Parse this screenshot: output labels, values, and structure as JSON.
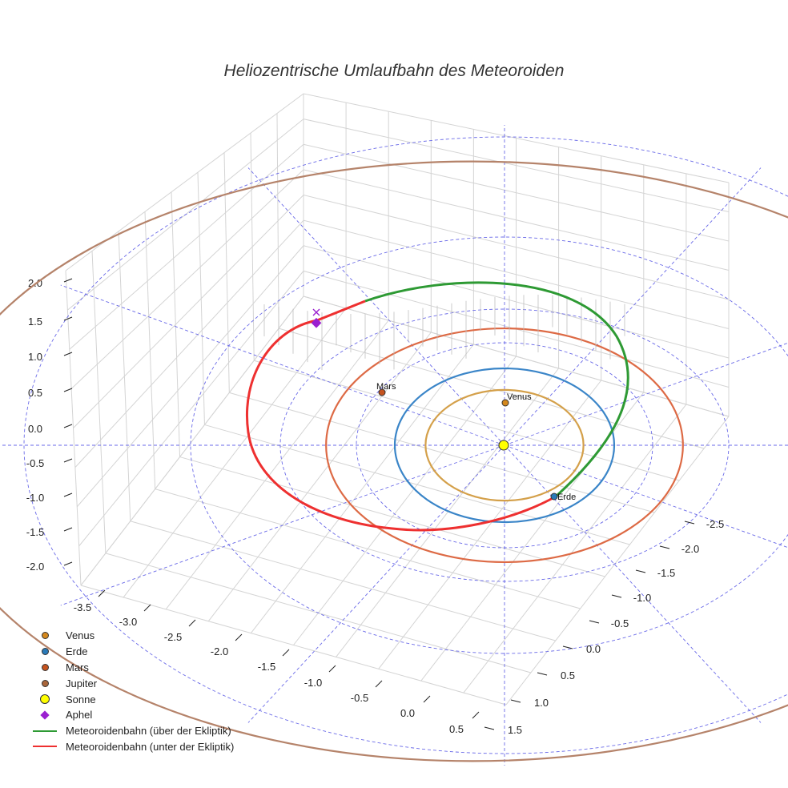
{
  "chart_data": {
    "type": "line",
    "title": "Heliozentrische Umlaufbahn des Meteoroiden",
    "axes": {
      "x_ticks": [
        "-3.5",
        "-3.0",
        "-2.5",
        "-2.0",
        "-1.5",
        "-1.0",
        "-0.5",
        "0.0",
        "0.5"
      ],
      "y_ticks": [
        "-2.5",
        "-2.0",
        "-1.5",
        "-1.0",
        "-0.5",
        "0.0",
        "0.5",
        "1.0",
        "1.5"
      ],
      "z_ticks": [
        "2.0",
        "1.5",
        "1.0",
        "0.5",
        "0.0",
        "-0.5",
        "-1.0",
        "-1.5",
        "-2.0"
      ],
      "zlim": [
        -2.0,
        2.0
      ],
      "grid": true
    },
    "planets": [
      {
        "name": "Venus",
        "orbit_radius": 0.72,
        "color": "#d4a04a",
        "label": "Venus"
      },
      {
        "name": "Erde",
        "orbit_radius": 1.0,
        "color": "#3a85c8",
        "label": "Erde"
      },
      {
        "name": "Mars",
        "orbit_radius": 1.52,
        "color": "#dd6a45",
        "label": "Mars"
      },
      {
        "name": "Jupiter",
        "orbit_radius": 5.2,
        "color": "#b5836a",
        "label": ""
      }
    ],
    "sun": {
      "name": "Sonne",
      "color": "#ffff00"
    },
    "aphel": {
      "name": "Aphel",
      "color": "#9a1fd0"
    },
    "series": [
      {
        "name": "Meteoroidenbahn (über der Ekliptik)",
        "color": "#2e9a34"
      },
      {
        "name": "Meteoroidenbahn (unter der Ekliptik)",
        "color": "#ee3030"
      }
    ],
    "legend_position": "bottom-left"
  },
  "legend": {
    "items": [
      {
        "label": "Venus",
        "kind": "dot",
        "color": "#d4881e"
      },
      {
        "label": "Erde",
        "kind": "dot",
        "color": "#2a7ab8"
      },
      {
        "label": "Mars",
        "kind": "dot",
        "color": "#c5531e"
      },
      {
        "label": "Jupiter",
        "kind": "dot",
        "color": "#a8653a"
      },
      {
        "label": "Sonne",
        "kind": "dot-big",
        "color": "#ffff00"
      },
      {
        "label": "Aphel",
        "kind": "diamond",
        "color": "#9a1fd0"
      },
      {
        "label": "Meteoroidenbahn (über der Ekliptik)",
        "kind": "line",
        "color": "#2e9a34"
      },
      {
        "label": "Meteoroidenbahn (unter der Ekliptik)",
        "kind": "line",
        "color": "#ee3030"
      }
    ]
  }
}
